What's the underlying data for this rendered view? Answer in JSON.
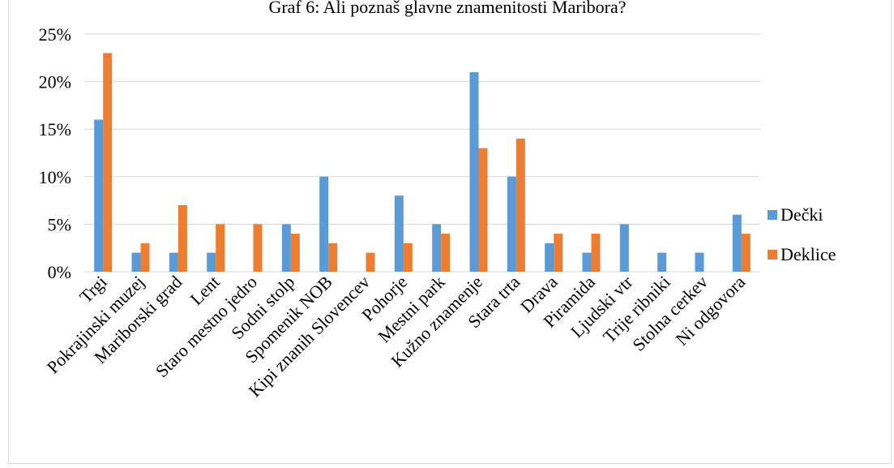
{
  "chart_data": {
    "type": "bar",
    "title": "Graf 6: Ali poznaš glavne znamenitosti Maribora?",
    "categories": [
      "Trgi",
      "Pokrajinski muzej",
      "Mariborski grad",
      "Lent",
      "Staro mestno jedro",
      "Sodni stolp",
      "Spomenik NOB",
      "Kipi znanih Slovencev",
      "Pohorje",
      "Mestni park",
      "Kužno znamenje",
      "Stara trta",
      "Drava",
      "Piramida",
      "Ljudski vtr",
      "Trije ribniki",
      "Stolna cerkev",
      "Ni odgovora"
    ],
    "series": [
      {
        "name": "Dečki",
        "color": "#5b9bd5",
        "values": [
          16,
          2,
          2,
          2,
          0,
          5,
          10,
          0,
          8,
          5,
          21,
          10,
          3,
          2,
          5,
          2,
          2,
          6
        ]
      },
      {
        "name": "Deklice",
        "color": "#ed7d31",
        "values": [
          23,
          3,
          7,
          5,
          5,
          4,
          3,
          2,
          3,
          4,
          13,
          14,
          4,
          4,
          0,
          0,
          0,
          4
        ]
      }
    ],
    "yticks": [
      "0%",
      "5%",
      "10%",
      "15%",
      "20%",
      "25%"
    ],
    "ylim": [
      0,
      25
    ],
    "grid": true,
    "legend_position": "right"
  }
}
